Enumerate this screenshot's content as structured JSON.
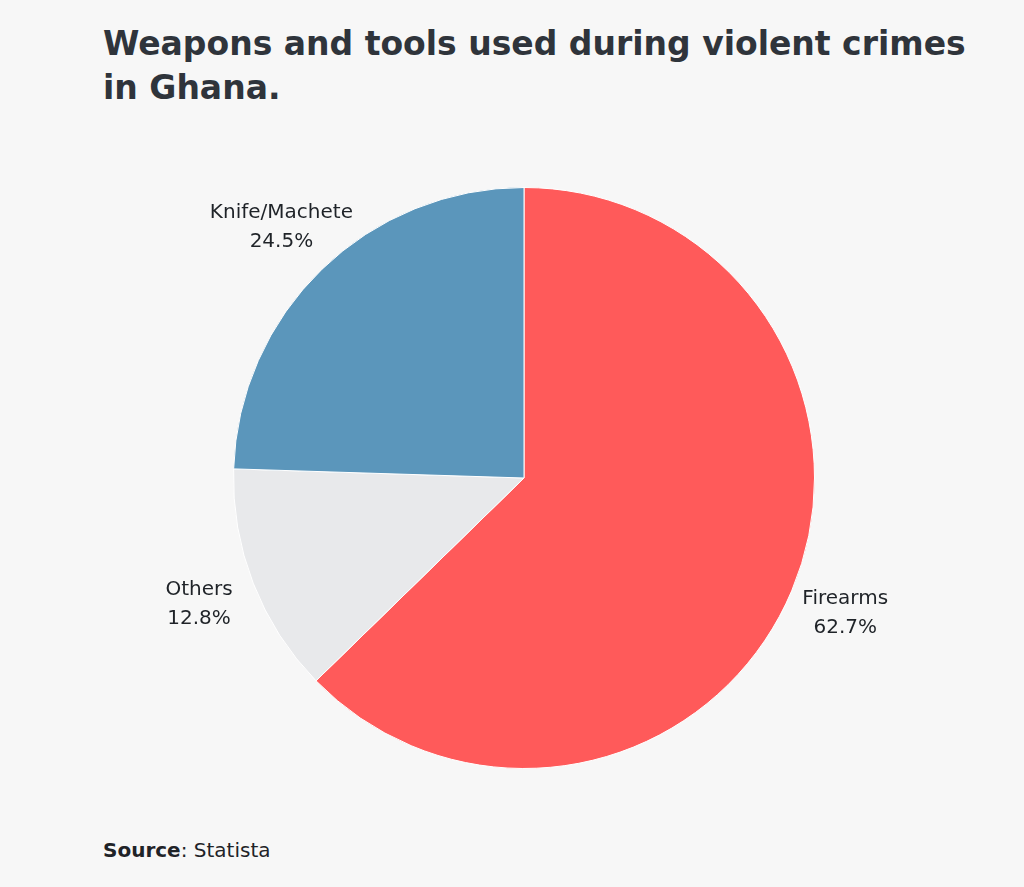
{
  "chart_data": {
    "type": "pie",
    "title": "Weapons and tools used during violent crimes in Ghana.",
    "categories": [
      "Firearms",
      "Others",
      "Knife/Machete"
    ],
    "values": [
      62.7,
      12.8,
      24.5
    ],
    "value_labels": [
      "62.7%",
      "12.8%",
      "24.5%"
    ],
    "colors": [
      "#ff5a5a",
      "#e8e9eb",
      "#5b96bb"
    ],
    "data_labels": true,
    "source": "Source: Statista"
  }
}
